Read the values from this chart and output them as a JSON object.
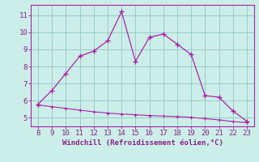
{
  "xlabel": "Windchill (Refroidissement éolien,°C)",
  "x_main": [
    8,
    9,
    10,
    11,
    12,
    13,
    14,
    15,
    16,
    17,
    18,
    19,
    20,
    21,
    22,
    23
  ],
  "y_main": [
    5.8,
    6.6,
    7.6,
    8.6,
    8.9,
    9.5,
    11.2,
    8.3,
    9.7,
    9.9,
    9.3,
    8.7,
    6.3,
    6.2,
    5.4,
    4.8
  ],
  "x_lower": [
    8,
    9,
    10,
    11,
    12,
    13,
    14,
    15,
    16,
    17,
    18,
    19,
    20,
    21,
    22,
    23
  ],
  "y_lower": [
    5.75,
    5.65,
    5.55,
    5.45,
    5.35,
    5.28,
    5.22,
    5.18,
    5.13,
    5.1,
    5.07,
    5.03,
    4.95,
    4.88,
    4.78,
    4.72
  ],
  "line_color": "#aa22aa",
  "bg_color": "#cceee8",
  "grid_color": "#99cccc",
  "tick_color": "#882288",
  "label_color": "#882288",
  "xlim": [
    7.5,
    23.5
  ],
  "ylim": [
    4.5,
    11.6
  ],
  "xticks": [
    8,
    9,
    10,
    11,
    12,
    13,
    14,
    15,
    16,
    17,
    18,
    19,
    20,
    21,
    22,
    23
  ],
  "yticks": [
    5,
    6,
    7,
    8,
    9,
    10,
    11
  ]
}
